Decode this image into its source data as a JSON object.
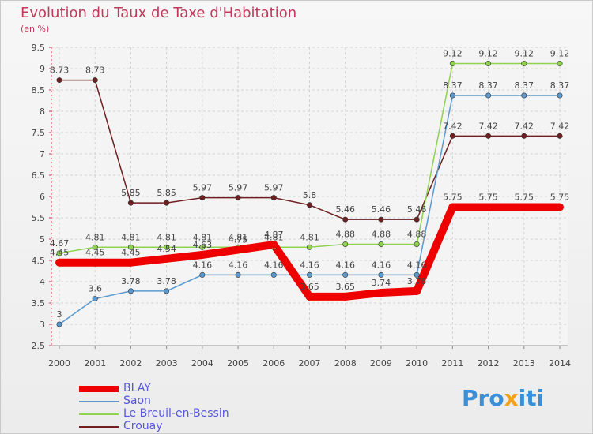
{
  "title": "Evolution du Taux de Taxe d'Habitation",
  "subtitle": "(en %)",
  "logo": {
    "parts": [
      "Pro",
      "x",
      "iti"
    ],
    "colors": [
      "#3b8fd6",
      "#f0a21c",
      "#3b8fd6"
    ]
  },
  "chart_data": {
    "type": "line",
    "title": "Evolution du Taux de Taxe d'Habitation",
    "ylabel": "(en %)",
    "x": [
      2000,
      2001,
      2002,
      2003,
      2004,
      2005,
      2006,
      2007,
      2008,
      2009,
      2010,
      2011,
      2012,
      2013,
      2014
    ],
    "ylim": [
      2.5,
      9.5
    ],
    "yticks": [
      2.5,
      3,
      3.5,
      4,
      4.5,
      5,
      5.5,
      6,
      6.5,
      7,
      7.5,
      8,
      8.5,
      9,
      9.5
    ],
    "grid": true,
    "legend_position": "bottom-left",
    "series": [
      {
        "name": "BLAY",
        "color": "#ee0000",
        "values": [
          4.45,
          4.45,
          4.45,
          4.54,
          4.63,
          4.75,
          4.87,
          3.65,
          3.65,
          3.74,
          3.78,
          5.75,
          5.75,
          5.75,
          5.75
        ]
      },
      {
        "name": "Saon",
        "color": "#5a9ad0",
        "values": [
          3,
          3.6,
          3.78,
          3.78,
          4.16,
          4.16,
          4.16,
          4.16,
          4.16,
          4.16,
          4.16,
          8.37,
          8.37,
          8.37,
          8.37
        ]
      },
      {
        "name": "Le Breuil-en-Bessin",
        "color": "#8fd24e",
        "values": [
          4.67,
          4.81,
          4.81,
          4.81,
          4.81,
          4.81,
          4.81,
          4.81,
          4.88,
          4.88,
          4.88,
          9.12,
          9.12,
          9.12,
          9.12
        ]
      },
      {
        "name": "Crouay",
        "color": "#6e2020",
        "values": [
          8.73,
          8.73,
          5.85,
          5.85,
          5.97,
          5.97,
          5.97,
          5.8,
          5.46,
          5.46,
          5.46,
          7.42,
          7.42,
          7.42,
          7.42
        ]
      }
    ]
  }
}
